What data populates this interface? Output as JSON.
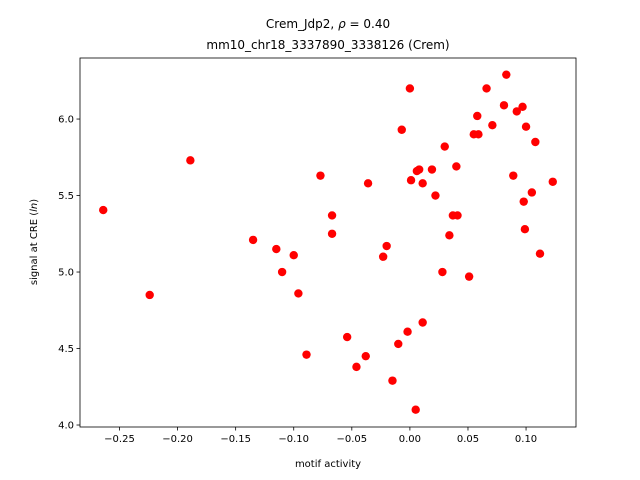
{
  "chart_data": {
    "type": "scatter",
    "title_line1_prefix": "Crem_Jdp2, ",
    "title_line1_symbol": "ρ",
    "title_line1_suffix": " = 0.40",
    "title_line2": "mm10_chr18_3337890_3338126 (Crem)",
    "xlabel": "motif activity",
    "ylabel_prefix": "signal at CRE (",
    "ylabel_italic": "ln",
    "ylabel_suffix": ")",
    "xlim": [
      -0.284,
      0.143
    ],
    "ylim": [
      3.987,
      6.399
    ],
    "xticks": [
      -0.25,
      -0.2,
      -0.15,
      -0.1,
      -0.05,
      0.0,
      0.05,
      0.1
    ],
    "xtick_labels": [
      "−0.25",
      "−0.20",
      "−0.15",
      "−0.10",
      "−0.05",
      "0.00",
      "0.05",
      "0.10"
    ],
    "yticks": [
      4.0,
      4.5,
      5.0,
      5.5,
      6.0
    ],
    "ytick_labels": [
      "4.0",
      "4.5",
      "5.0",
      "5.5",
      "6.0"
    ],
    "grid": false,
    "marker_color": "#ff0000",
    "points": [
      [
        -0.264,
        5.405
      ],
      [
        -0.224,
        4.85
      ],
      [
        -0.189,
        5.73
      ],
      [
        -0.135,
        5.21
      ],
      [
        -0.115,
        5.15
      ],
      [
        -0.11,
        5.0
      ],
      [
        -0.1,
        5.11
      ],
      [
        -0.096,
        4.86
      ],
      [
        -0.089,
        4.46
      ],
      [
        -0.077,
        5.63
      ],
      [
        -0.067,
        5.37
      ],
      [
        -0.067,
        5.25
      ],
      [
        -0.054,
        4.575
      ],
      [
        -0.046,
        4.38
      ],
      [
        -0.038,
        4.45
      ],
      [
        -0.036,
        5.58
      ],
      [
        -0.023,
        5.1
      ],
      [
        -0.02,
        5.17
      ],
      [
        -0.015,
        4.29
      ],
      [
        -0.01,
        4.53
      ],
      [
        -0.007,
        5.93
      ],
      [
        -0.002,
        4.61
      ],
      [
        0.0,
        6.2
      ],
      [
        0.001,
        5.6
      ],
      [
        0.005,
        4.1
      ],
      [
        0.006,
        5.66
      ],
      [
        0.008,
        5.67
      ],
      [
        0.011,
        5.58
      ],
      [
        0.011,
        4.67
      ],
      [
        0.019,
        5.67
      ],
      [
        0.022,
        5.5
      ],
      [
        0.028,
        5.0
      ],
      [
        0.03,
        5.82
      ],
      [
        0.034,
        5.24
      ],
      [
        0.037,
        5.37
      ],
      [
        0.04,
        5.69
      ],
      [
        0.041,
        5.37
      ],
      [
        0.051,
        4.97
      ],
      [
        0.055,
        5.9
      ],
      [
        0.058,
        6.02
      ],
      [
        0.059,
        5.9
      ],
      [
        0.066,
        6.2
      ],
      [
        0.071,
        5.96
      ],
      [
        0.081,
        6.09
      ],
      [
        0.083,
        6.29
      ],
      [
        0.089,
        5.63
      ],
      [
        0.092,
        6.05
      ],
      [
        0.097,
        6.08
      ],
      [
        0.098,
        5.46
      ],
      [
        0.1,
        5.95
      ],
      [
        0.099,
        5.28
      ],
      [
        0.105,
        5.52
      ],
      [
        0.108,
        5.85
      ],
      [
        0.112,
        5.12
      ],
      [
        0.123,
        5.59
      ]
    ]
  }
}
